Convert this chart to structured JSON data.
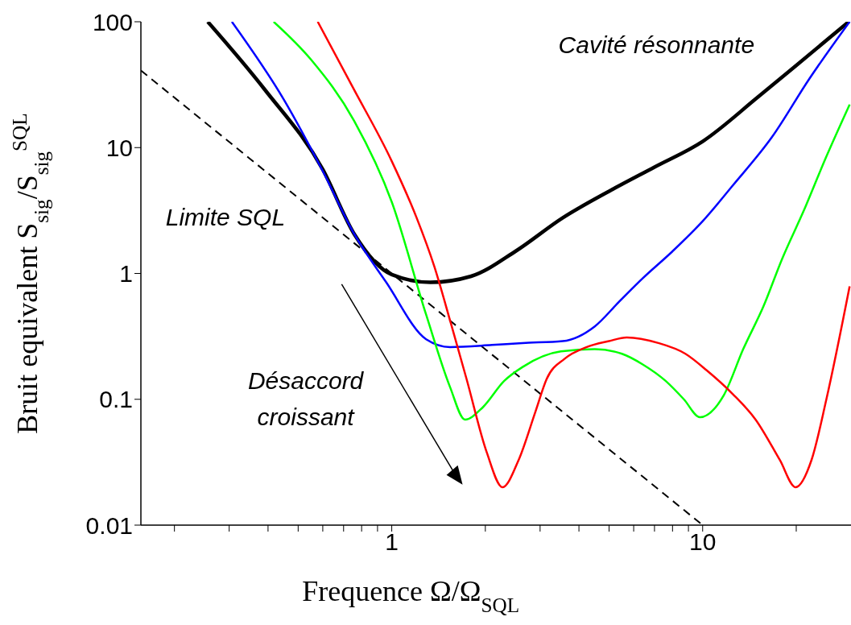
{
  "chart_data": {
    "type": "line",
    "xlabel": "Frequence Ω/Ω$_{SQL}$",
    "ylabel": "Bruit equivalent S$_{sig}$/S$_{sig}$$^{SQL}$",
    "log": "xy",
    "xlim": [
      0.156,
      30
    ],
    "ylim": [
      0.01,
      100
    ],
    "xticks": [
      {
        "value": 0.2,
        "label": null
      },
      {
        "value": 0.3,
        "label": null
      },
      {
        "value": 0.4,
        "label": null
      },
      {
        "value": 0.5,
        "label": null
      },
      {
        "value": 0.6,
        "label": null
      },
      {
        "value": 0.7,
        "label": null
      },
      {
        "value": 0.8,
        "label": null
      },
      {
        "value": 0.9,
        "label": null
      },
      1,
      {
        "value": 2,
        "label": null
      },
      {
        "value": 3,
        "label": null
      },
      {
        "value": 4,
        "label": null
      },
      {
        "value": 5,
        "label": null
      },
      {
        "value": 6,
        "label": null
      },
      {
        "value": 7,
        "label": null
      },
      {
        "value": 8,
        "label": null
      },
      {
        "value": 9,
        "label": null
      },
      10,
      {
        "value": 20,
        "label": null
      }
    ],
    "yticks": [
      0.01,
      0.1,
      1,
      10,
      100
    ],
    "marker": "none",
    "series": [
      {
        "color": "#000000",
        "line_style": "dashed",
        "x": [
          0.156,
          10
        ],
        "values": [
          41,
          0.01
        ]
      },
      {
        "color": "#000000",
        "x": [
          0.256,
          0.39,
          0.6,
          0.757,
          1,
          1.33,
          1.8,
          2.5,
          3.55,
          5,
          7,
          10,
          15,
          20,
          29.5
        ],
        "values": [
          100,
          29,
          6.7,
          2.06,
          0.98,
          0.85,
          0.95,
          1.5,
          2.77,
          4.5,
          7,
          11.2,
          25,
          45,
          100
        ]
      },
      {
        "color": "#0000ff",
        "x": [
          0.306,
          0.45,
          0.6,
          0.757,
          0.96,
          1.29,
          1.54,
          2.1,
          2.63,
          3.55,
          4.5,
          5.4,
          6.4,
          8,
          10,
          12.5,
          16.7,
          22,
          29.7
        ],
        "values": [
          100,
          24,
          6.5,
          2.06,
          0.85,
          0.3,
          0.26,
          0.27,
          0.28,
          0.29,
          0.38,
          0.6,
          0.91,
          1.5,
          2.6,
          5,
          12.1,
          35,
          100
        ]
      },
      {
        "color": "#00ff00",
        "x": [
          0.417,
          0.55,
          0.757,
          1,
          1.29,
          1.54,
          1.72,
          1.96,
          2.3,
          2.63,
          3.5,
          4.5,
          5.5,
          6.4,
          7.6,
          8.7,
          9.8,
          11.7,
          13.5,
          15.7,
          18,
          21.2,
          25,
          29.7
        ],
        "values": [
          100,
          50,
          16.3,
          3.7,
          0.47,
          0.125,
          0.069,
          0.086,
          0.14,
          0.18,
          0.24,
          0.25,
          0.23,
          0.19,
          0.14,
          0.1,
          0.072,
          0.108,
          0.25,
          0.55,
          1.3,
          3.2,
          8.5,
          22
        ]
      },
      {
        "color": "#ff0000",
        "x": [
          0.578,
          0.75,
          1,
          1.2,
          1.37,
          1.55,
          1.74,
          2.02,
          2.27,
          2.56,
          2.9,
          3.15,
          3.6,
          4.24,
          5,
          5.7,
          7.2,
          8.8,
          10.3,
          12.5,
          14.8,
          17.7,
          19.9,
          22.4,
          25,
          29.7
        ],
        "values": [
          100,
          30,
          7.8,
          2.8,
          1.14,
          0.4,
          0.145,
          0.038,
          0.02,
          0.033,
          0.08,
          0.145,
          0.21,
          0.26,
          0.29,
          0.31,
          0.28,
          0.23,
          0.17,
          0.11,
          0.069,
          0.033,
          0.02,
          0.033,
          0.1,
          0.79
        ]
      }
    ],
    "annotations": [
      "Cavité résonnante",
      "Limite SQL",
      "Désaccord",
      "croissant"
    ]
  }
}
